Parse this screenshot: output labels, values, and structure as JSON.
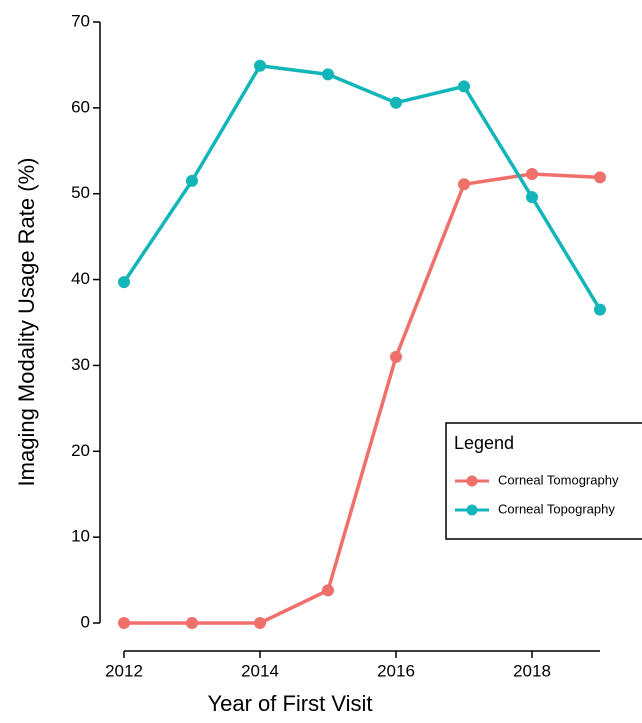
{
  "chart_data": {
    "type": "line",
    "xlabel": "Year of First Visit",
    "ylabel": "Imaging Modality Usage Rate (%)",
    "x": [
      2012,
      2013,
      2014,
      2015,
      2016,
      2017,
      2018,
      2019
    ],
    "series": [
      {
        "name": "Corneal Tomography",
        "color": "#ef6f6a",
        "values": [
          0,
          0,
          0,
          3.8,
          31,
          51.1,
          52.3,
          51.9
        ]
      },
      {
        "name": "Corneal Topography",
        "color": "#12b5b8",
        "values": [
          39.7,
          51.5,
          64.9,
          63.9,
          60.6,
          62.5,
          49.6,
          36.5
        ]
      }
    ],
    "xlim": [
      2012,
      2019
    ],
    "xticks": [
      2012,
      2014,
      2016,
      2018
    ],
    "ylim": [
      0,
      70
    ],
    "yticks": [
      0,
      10,
      20,
      30,
      40,
      50,
      60,
      70
    ],
    "legend_title": "Legend"
  }
}
